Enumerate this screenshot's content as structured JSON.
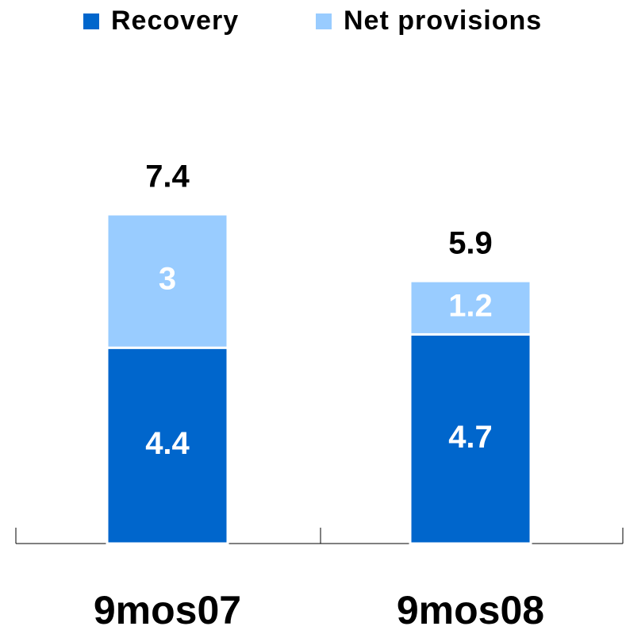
{
  "chart_data": {
    "type": "stacked-bar",
    "categories": [
      "9mos07",
      "9mos08"
    ],
    "series": [
      {
        "name": "Recovery",
        "color": "#0066cc",
        "values": [
          4.4,
          4.7
        ]
      },
      {
        "name": "Net provisions",
        "color": "#99ccff",
        "values": [
          3.0,
          1.2
        ]
      }
    ],
    "totals": [
      7.4,
      5.9
    ]
  }
}
